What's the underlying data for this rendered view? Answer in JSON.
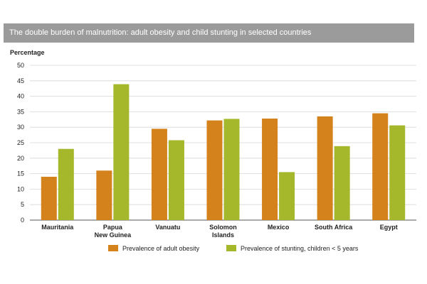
{
  "chart_data": {
    "type": "bar",
    "title": "The double burden of malnutrition: adult obesity and child stunting in selected countries",
    "ylabel": "Percentage",
    "xlabel": "",
    "ylim": [
      0,
      50
    ],
    "yticks": [
      0,
      5,
      10,
      15,
      20,
      25,
      30,
      35,
      40,
      45,
      50
    ],
    "categories": [
      [
        "Mauritania"
      ],
      [
        "Papua",
        "New Guinea"
      ],
      [
        "Vanuatu"
      ],
      [
        "Solomon",
        "Islands"
      ],
      [
        "Mexico"
      ],
      [
        "South Africa"
      ],
      [
        "Egypt"
      ]
    ],
    "series": [
      {
        "name": "Prevalence of adult obesity",
        "color": "#d4821b",
        "values": [
          14,
          16,
          29.5,
          32.2,
          32.8,
          33.5,
          34.5
        ]
      },
      {
        "name": "Prevalence of stunting, children < 5 years",
        "color": "#a5b72a",
        "values": [
          23,
          43.9,
          25.8,
          32.7,
          15.5,
          23.9,
          30.6
        ]
      }
    ],
    "legend_position": "bottom"
  }
}
